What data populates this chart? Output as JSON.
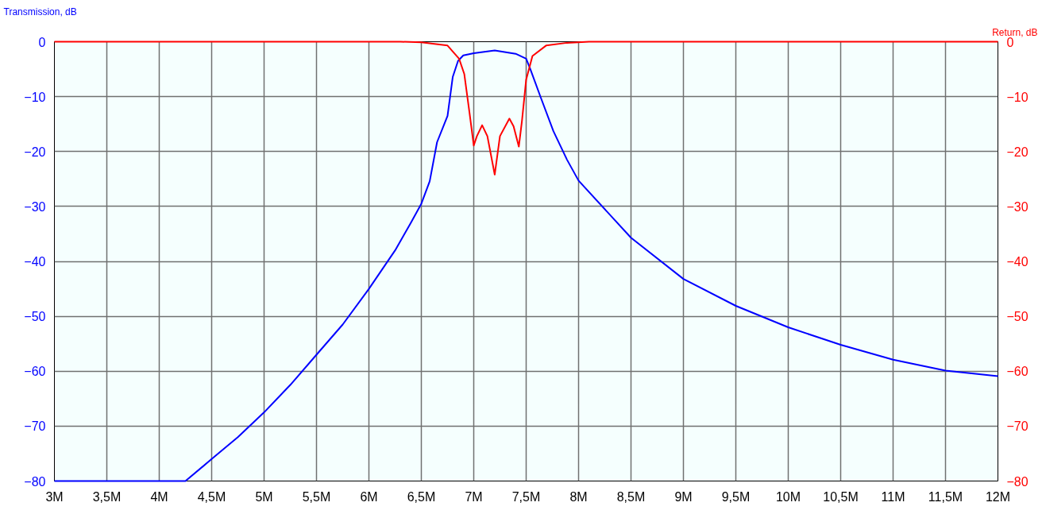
{
  "chart_data": {
    "type": "line",
    "ylabel": "Transmission, dB",
    "y2label": "Return, dB",
    "xlim": [
      3,
      12
    ],
    "ylim": [
      -80,
      0
    ],
    "y2lim": [
      -80,
      0
    ],
    "xticks": [
      {
        "value": 3,
        "label": "3M"
      },
      {
        "value": 3.5,
        "label": "3,5M"
      },
      {
        "value": 4,
        "label": "4M"
      },
      {
        "value": 4.5,
        "label": "4,5M"
      },
      {
        "value": 5,
        "label": "5M"
      },
      {
        "value": 5.5,
        "label": "5,5M"
      },
      {
        "value": 6,
        "label": "6M"
      },
      {
        "value": 6.5,
        "label": "6,5M"
      },
      {
        "value": 7,
        "label": "7M"
      },
      {
        "value": 7.5,
        "label": "7,5M"
      },
      {
        "value": 8,
        "label": "8M"
      },
      {
        "value": 8.5,
        "label": "8,5M"
      },
      {
        "value": 9,
        "label": "9M"
      },
      {
        "value": 9.5,
        "label": "9,5M"
      },
      {
        "value": 10,
        "label": "10M"
      },
      {
        "value": 10.5,
        "label": "10,5M"
      },
      {
        "value": 11,
        "label": "11M"
      },
      {
        "value": 11.5,
        "label": "11,5M"
      },
      {
        "value": 12,
        "label": "12M"
      }
    ],
    "yticks": [
      0,
      -10,
      -20,
      -30,
      -40,
      -50,
      -60,
      -70,
      -80
    ],
    "y2ticks": [
      0,
      -10,
      -20,
      -30,
      -40,
      -50,
      -60,
      -70,
      -80
    ],
    "grid": true,
    "series": [
      {
        "color": "#0000ff",
        "x": [
          3,
          4.25,
          4.5,
          4.75,
          5,
          5.25,
          5.5,
          5.75,
          6,
          6.25,
          6.4,
          6.5,
          6.58,
          6.65,
          6.75,
          6.8,
          6.85,
          6.9,
          7.0,
          7.2,
          7.4,
          7.5,
          7.54,
          7.64,
          7.76,
          7.89,
          8,
          8.5,
          9,
          9.5,
          10,
          10.5,
          11,
          11.5,
          12
        ],
        "values": [
          -80,
          -80,
          -76,
          -72,
          -67.5,
          -62.5,
          -57,
          -51.5,
          -45,
          -38,
          -33,
          -29.5,
          -25.4,
          -18.3,
          -13.5,
          -6.4,
          -3.5,
          -2.5,
          -2.1,
          -1.6,
          -2.2,
          -3.1,
          -5,
          -10.2,
          -16.3,
          -21.5,
          -25.3,
          -35.7,
          -43.2,
          -48.1,
          -52,
          -55.2,
          -57.9,
          -59.9,
          -60.9
        ]
      },
      {
        "color": "#ff0000",
        "axis": "y2",
        "x": [
          3,
          6.3,
          6.5,
          6.75,
          6.86,
          6.91,
          6.96,
          7.0,
          7.03,
          7.08,
          7.13,
          7.2,
          7.25,
          7.34,
          7.38,
          7.43,
          7.46,
          7.5,
          7.56,
          7.69,
          7.89,
          8.1,
          12
        ],
        "values": [
          0,
          0,
          -0.1,
          -0.7,
          -3.1,
          -5.9,
          -13,
          -18.9,
          -17.2,
          -15.2,
          -17.2,
          -24.2,
          -17.2,
          -14,
          -15.4,
          -19.1,
          -14.4,
          -6.9,
          -2.6,
          -0.7,
          -0.2,
          0,
          0
        ]
      }
    ]
  }
}
